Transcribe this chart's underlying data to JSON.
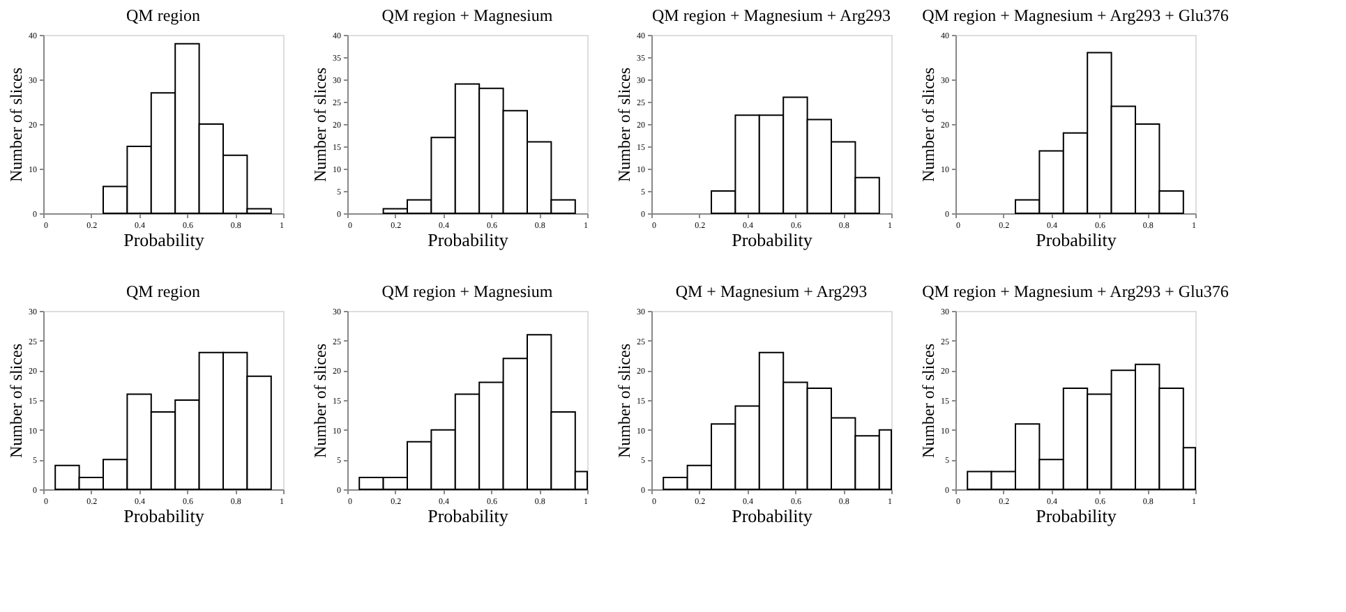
{
  "chart_data": [
    {
      "type": "histogram",
      "title": "QM region",
      "xlabel": "Probability",
      "ylabel": "Number of slices",
      "bins": [
        0.25,
        0.35,
        0.45,
        0.55,
        0.65,
        0.75,
        0.85,
        0.95
      ],
      "values": [
        6,
        15,
        27,
        38,
        20,
        13,
        1
      ],
      "color": "#ffffff",
      "xlim": [
        0,
        1
      ],
      "xticks": [
        0,
        0.2,
        0.4,
        0.6,
        0.8,
        1
      ],
      "ylim": [
        0,
        40
      ],
      "yticks": [
        0,
        10,
        20,
        30,
        40
      ],
      "grid": false
    },
    {
      "type": "histogram",
      "title": "QM region + Magnesium",
      "xlabel": "Probability",
      "ylabel": "Number of slices",
      "bins": [
        0.15,
        0.25,
        0.35,
        0.45,
        0.55,
        0.65,
        0.75,
        0.85,
        0.95
      ],
      "values": [
        1,
        3,
        17,
        29,
        28,
        23,
        16,
        3
      ],
      "color": "#ffffff",
      "xlim": [
        0,
        1
      ],
      "xticks": [
        0,
        0.2,
        0.4,
        0.6,
        0.8,
        1
      ],
      "ylim": [
        0,
        40
      ],
      "yticks": [
        0,
        5,
        10,
        15,
        20,
        25,
        30,
        35,
        40
      ],
      "grid": false
    },
    {
      "type": "histogram",
      "title": "QM region + Magnesium + Arg293",
      "xlabel": "Probability",
      "ylabel": "Number of slices",
      "bins": [
        0.25,
        0.35,
        0.45,
        0.55,
        0.65,
        0.75,
        0.85,
        0.95
      ],
      "values": [
        5,
        22,
        22,
        26,
        21,
        16,
        8
      ],
      "color": "#ffffff",
      "xlim": [
        0,
        1
      ],
      "xticks": [
        0,
        0.2,
        0.4,
        0.6,
        0.8,
        1
      ],
      "ylim": [
        0,
        40
      ],
      "yticks": [
        0,
        5,
        10,
        15,
        20,
        25,
        30,
        35,
        40
      ],
      "grid": false
    },
    {
      "type": "histogram",
      "title": "QM region + Magnesium + Arg293 + Glu376",
      "xlabel": "Probability",
      "ylabel": "Number of slices",
      "bins": [
        0.25,
        0.35,
        0.45,
        0.55,
        0.65,
        0.75,
        0.85,
        0.95
      ],
      "values": [
        3,
        14,
        18,
        36,
        24,
        20,
        5
      ],
      "color": "#ffffff",
      "xlim": [
        0,
        1
      ],
      "xticks": [
        0,
        0.2,
        0.4,
        0.6,
        0.8,
        1
      ],
      "ylim": [
        0,
        40
      ],
      "yticks": [
        0,
        10,
        20,
        30,
        40
      ],
      "grid": false
    },
    {
      "type": "histogram",
      "title": "QM region",
      "xlabel": "Probability",
      "ylabel": "Number of slices",
      "bins": [
        0.05,
        0.15,
        0.25,
        0.35,
        0.45,
        0.55,
        0.65,
        0.75,
        0.85,
        0.95
      ],
      "values": [
        4,
        2,
        5,
        16,
        13,
        15,
        23,
        23,
        19
      ],
      "color": "#ffffff",
      "xlim": [
        0,
        1
      ],
      "xticks": [
        0,
        0.2,
        0.4,
        0.6,
        0.8,
        1
      ],
      "ylim": [
        0,
        30
      ],
      "yticks": [
        0,
        5,
        10,
        15,
        20,
        25,
        30
      ],
      "grid": false
    },
    {
      "type": "histogram",
      "title": "QM region + Magnesium",
      "xlabel": "Probability",
      "ylabel": "Number of slices",
      "bins": [
        0.05,
        0.15,
        0.25,
        0.35,
        0.45,
        0.55,
        0.65,
        0.75,
        0.85,
        0.95,
        1
      ],
      "values": [
        2,
        2,
        8,
        10,
        16,
        18,
        22,
        26,
        13,
        3
      ],
      "color": "#ffffff",
      "xlim": [
        0,
        1
      ],
      "xticks": [
        0,
        0.2,
        0.4,
        0.6,
        0.8,
        1
      ],
      "ylim": [
        0,
        30
      ],
      "yticks": [
        0,
        5,
        10,
        15,
        20,
        25,
        30
      ],
      "grid": false
    },
    {
      "type": "histogram",
      "title": "QM + Magnesium + Arg293",
      "xlabel": "Probability",
      "ylabel": "Number of slices",
      "bins": [
        0.05,
        0.15,
        0.25,
        0.35,
        0.45,
        0.55,
        0.65,
        0.75,
        0.85,
        0.95,
        1
      ],
      "values": [
        2,
        4,
        11,
        14,
        23,
        18,
        17,
        12,
        9,
        10
      ],
      "color": "#ffffff",
      "xlim": [
        0,
        1
      ],
      "xticks": [
        0,
        0.2,
        0.4,
        0.6,
        0.8,
        1
      ],
      "ylim": [
        0,
        30
      ],
      "yticks": [
        0,
        5,
        10,
        15,
        20,
        25,
        30
      ],
      "grid": false
    },
    {
      "type": "histogram",
      "title": "QM region + Magnesium + Arg293 + Glu376",
      "xlabel": "Probability",
      "ylabel": "Number of slices",
      "bins": [
        0.05,
        0.15,
        0.25,
        0.35,
        0.45,
        0.55,
        0.65,
        0.75,
        0.85,
        0.95,
        1
      ],
      "values": [
        3,
        3,
        11,
        5,
        17,
        16,
        20,
        21,
        17,
        7
      ],
      "color": "#ffffff",
      "xlim": [
        0,
        1
      ],
      "xticks": [
        0,
        0.2,
        0.4,
        0.6,
        0.8,
        1
      ],
      "ylim": [
        0,
        30
      ],
      "yticks": [
        0,
        5,
        10,
        15,
        20,
        25,
        30
      ],
      "grid": false
    }
  ]
}
